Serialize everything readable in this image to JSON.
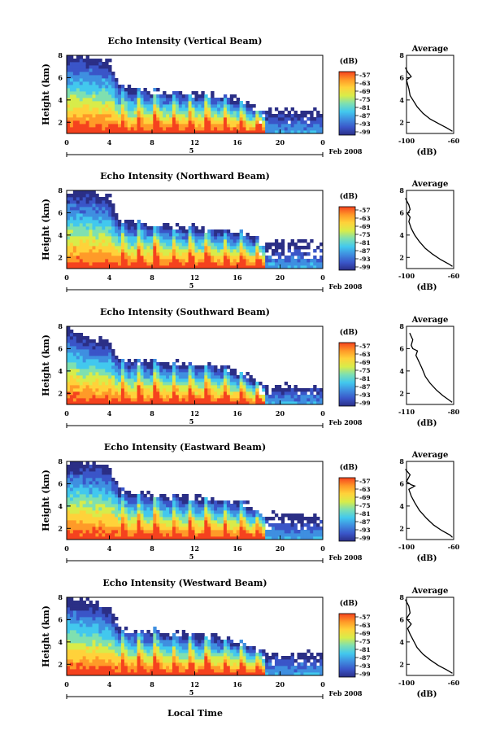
{
  "figure": {
    "xlabel": "Local Time",
    "date_label": "Feb 2008",
    "day_label": "5",
    "colorbar_unit": "(dB)",
    "avg_title": "Average",
    "avg_xlabel": "(dB)",
    "ylabel": "Height (km)"
  },
  "chart_data": [
    {
      "type": "heatmap",
      "title": "Echo Intensity (Vertical Beam)",
      "xlabel": "",
      "ylabel": "Height (km)",
      "x_ticks": [
        "0",
        "4",
        "8",
        "12",
        "16",
        "20",
        "0"
      ],
      "xlim": [
        0,
        24
      ],
      "y_ticks": [
        "2",
        "4",
        "6",
        "8"
      ],
      "ylim": [
        1,
        8
      ],
      "colorbar_ticks": [
        "-57",
        "-63",
        "-69",
        "-75",
        "-81",
        "-87",
        "-93",
        "-99"
      ],
      "echo_top_km": [
        [
          0,
          8
        ],
        [
          2,
          8
        ],
        [
          4,
          7.5
        ],
        [
          5,
          5.2
        ],
        [
          8,
          4.8
        ],
        [
          12,
          4.6
        ],
        [
          15,
          4.4
        ],
        [
          17,
          3.6
        ],
        [
          18,
          3.2
        ],
        [
          24,
          3.0
        ]
      ],
      "avg_profile": {
        "title": "Average",
        "xlabel": "(dB)",
        "x_ticks": [
          "-100",
          "-60"
        ],
        "xlim": [
          -100,
          -60
        ],
        "y_ticks": [
          "2",
          "4",
          "6",
          "8"
        ],
        "ylim": [
          1,
          8
        ],
        "points": [
          [
            -101,
            6.9
          ],
          [
            -99,
            6.5
          ],
          [
            -96,
            6.1
          ],
          [
            -100,
            5.8
          ],
          [
            -99,
            5.4
          ],
          [
            -98,
            5.0
          ],
          [
            -97,
            4.4
          ],
          [
            -94,
            3.9
          ],
          [
            -91,
            3.4
          ],
          [
            -86,
            2.8
          ],
          [
            -80,
            2.3
          ],
          [
            -73,
            1.9
          ],
          [
            -66,
            1.5
          ],
          [
            -61,
            1.2
          ]
        ]
      }
    },
    {
      "type": "heatmap",
      "title": "Echo Intensity (Northward Beam)",
      "xlabel": "",
      "ylabel": "Height (km)",
      "x_ticks": [
        "0",
        "4",
        "8",
        "12",
        "16",
        "20",
        "0"
      ],
      "xlim": [
        0,
        24
      ],
      "y_ticks": [
        "2",
        "4",
        "6",
        "8"
      ],
      "ylim": [
        1,
        8
      ],
      "colorbar_ticks": [
        "-57",
        "-63",
        "-69",
        "-75",
        "-81",
        "-87",
        "-93",
        "-99"
      ],
      "echo_top_km": [
        [
          0,
          8
        ],
        [
          2,
          8
        ],
        [
          4,
          7.5
        ],
        [
          5,
          5.3
        ],
        [
          8,
          5.0
        ],
        [
          12,
          4.7
        ],
        [
          15,
          4.5
        ],
        [
          17,
          4.2
        ],
        [
          18,
          3.4
        ],
        [
          24,
          3.2
        ]
      ],
      "avg_profile": {
        "title": "Average",
        "xlabel": "(dB)",
        "x_ticks": [
          "-100",
          "-60"
        ],
        "xlim": [
          -100,
          -60
        ],
        "y_ticks": [
          "2",
          "4",
          "6",
          "8"
        ],
        "ylim": [
          1,
          8
        ],
        "points": [
          [
            -101,
            7.3
          ],
          [
            -98,
            6.7
          ],
          [
            -97,
            6.3
          ],
          [
            -99,
            5.9
          ],
          [
            -97,
            5.6
          ],
          [
            -98,
            5.2
          ],
          [
            -96,
            4.6
          ],
          [
            -93,
            4.0
          ],
          [
            -89,
            3.4
          ],
          [
            -84,
            2.8
          ],
          [
            -78,
            2.3
          ],
          [
            -71,
            1.8
          ],
          [
            -64,
            1.4
          ],
          [
            -61,
            1.2
          ]
        ]
      }
    },
    {
      "type": "heatmap",
      "title": "Echo Intensity (Southward Beam)",
      "xlabel": "",
      "ylabel": "Height (km)",
      "x_ticks": [
        "0",
        "4",
        "8",
        "12",
        "16",
        "20",
        "0"
      ],
      "xlim": [
        0,
        24
      ],
      "y_ticks": [
        "2",
        "4",
        "6",
        "8"
      ],
      "ylim": [
        1,
        8
      ],
      "colorbar_ticks": [
        "-57",
        "-63",
        "-69",
        "-75",
        "-81",
        "-87",
        "-93",
        "-99"
      ],
      "echo_top_km": [
        [
          0,
          8
        ],
        [
          2,
          7.0
        ],
        [
          4,
          6.8
        ],
        [
          5,
          5.0
        ],
        [
          8,
          4.8
        ],
        [
          12,
          4.6
        ],
        [
          15,
          4.3
        ],
        [
          17,
          3.6
        ],
        [
          18,
          2.8
        ],
        [
          24,
          2.6
        ]
      ],
      "avg_profile": {
        "title": "Average",
        "xlabel": "(dB)",
        "x_ticks": [
          "-110",
          "-80"
        ],
        "xlim": [
          -110,
          -80
        ],
        "y_ticks": [
          "2",
          "4",
          "6",
          "8"
        ],
        "ylim": [
          1,
          8
        ],
        "points": [
          [
            -108,
            7.4
          ],
          [
            -106,
            6.8
          ],
          [
            -107,
            6.3
          ],
          [
            -106,
            6.0
          ],
          [
            -103,
            5.8
          ],
          [
            -104,
            5.4
          ],
          [
            -102,
            4.8
          ],
          [
            -100,
            4.2
          ],
          [
            -98,
            3.5
          ],
          [
            -95,
            2.9
          ],
          [
            -91,
            2.3
          ],
          [
            -87,
            1.8
          ],
          [
            -83,
            1.4
          ],
          [
            -81,
            1.2
          ]
        ]
      }
    },
    {
      "type": "heatmap",
      "title": "Echo Intensity (Eastward Beam)",
      "xlabel": "",
      "ylabel": "Height (km)",
      "x_ticks": [
        "0",
        "4",
        "8",
        "12",
        "16",
        "20",
        "0"
      ],
      "xlim": [
        0,
        24
      ],
      "y_ticks": [
        "2",
        "4",
        "6",
        "8"
      ],
      "ylim": [
        1,
        8
      ],
      "colorbar_ticks": [
        "-57",
        "-63",
        "-69",
        "-75",
        "-81",
        "-87",
        "-93",
        "-99"
      ],
      "echo_top_km": [
        [
          0,
          8
        ],
        [
          2,
          8
        ],
        [
          4,
          7.6
        ],
        [
          5,
          5.4
        ],
        [
          8,
          5.0
        ],
        [
          12,
          4.8
        ],
        [
          15,
          4.5
        ],
        [
          17,
          4.2
        ],
        [
          18,
          3.4
        ],
        [
          24,
          3.0
        ]
      ],
      "avg_profile": {
        "title": "Average",
        "xlabel": "(dB)",
        "x_ticks": [
          "-100",
          "-60"
        ],
        "xlim": [
          -100,
          -60
        ],
        "y_ticks": [
          "2",
          "4",
          "6",
          "8"
        ],
        "ylim": [
          1,
          8
        ],
        "points": [
          [
            -101,
            7.3
          ],
          [
            -97,
            6.8
          ],
          [
            -100,
            6.2
          ],
          [
            -96,
            5.9
          ],
          [
            -93,
            5.8
          ],
          [
            -98,
            5.5
          ],
          [
            -96,
            4.9
          ],
          [
            -93,
            4.3
          ],
          [
            -89,
            3.6
          ],
          [
            -83,
            2.9
          ],
          [
            -77,
            2.3
          ],
          [
            -70,
            1.8
          ],
          [
            -63,
            1.4
          ],
          [
            -61,
            1.2
          ]
        ]
      }
    },
    {
      "type": "heatmap",
      "title": "Echo Intensity (Westward Beam)",
      "xlabel": "Local Time",
      "ylabel": "Height (km)",
      "x_ticks": [
        "0",
        "4",
        "8",
        "12",
        "16",
        "20",
        "0"
      ],
      "xlim": [
        0,
        24
      ],
      "y_ticks": [
        "2",
        "4",
        "6",
        "8"
      ],
      "ylim": [
        1,
        8
      ],
      "colorbar_ticks": [
        "-57",
        "-63",
        "-69",
        "-75",
        "-81",
        "-87",
        "-93",
        "-99"
      ],
      "echo_top_km": [
        [
          0,
          8
        ],
        [
          2,
          7.6
        ],
        [
          4,
          7.2
        ],
        [
          5,
          5.2
        ],
        [
          8,
          5.0
        ],
        [
          12,
          4.6
        ],
        [
          15,
          4.4
        ],
        [
          17,
          3.8
        ],
        [
          18,
          3.2
        ],
        [
          24,
          3.0
        ]
      ],
      "avg_profile": {
        "title": "Average",
        "xlabel": "(dB)",
        "x_ticks": [
          "-100",
          "-60"
        ],
        "xlim": [
          -100,
          -60
        ],
        "y_ticks": [
          "2",
          "4",
          "6",
          "8"
        ],
        "ylim": [
          1,
          8
        ],
        "points": [
          [
            -101,
            7.8
          ],
          [
            -98,
            7.2
          ],
          [
            -97,
            6.6
          ],
          [
            -100,
            6.1
          ],
          [
            -96,
            5.6
          ],
          [
            -99,
            5.2
          ],
          [
            -97,
            4.7
          ],
          [
            -94,
            4.1
          ],
          [
            -91,
            3.5
          ],
          [
            -86,
            2.9
          ],
          [
            -80,
            2.4
          ],
          [
            -73,
            1.9
          ],
          [
            -66,
            1.5
          ],
          [
            -61,
            1.2
          ]
        ]
      }
    }
  ],
  "colors": {
    "scale": [
      "#2b2f86",
      "#3a55c8",
      "#3f8fe0",
      "#42c8ee",
      "#7fe0b0",
      "#d8ec4a",
      "#ffd23a",
      "#ff9a28",
      "#f5421e"
    ],
    "white": "#ffffff",
    "axis": "#000000"
  }
}
